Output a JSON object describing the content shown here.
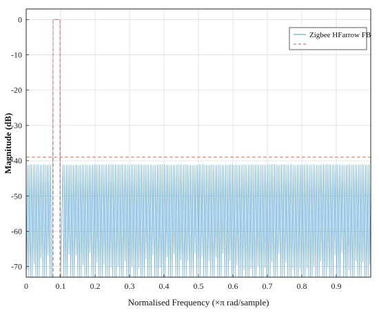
{
  "chart_data": {
    "type": "line",
    "title": "",
    "xlabel": "Normalised Frequency (×π rad/sample)",
    "ylabel": "Magnitude (dB)",
    "xlim": [
      0,
      1
    ],
    "ylim": [
      -73,
      3
    ],
    "xticks": [
      0,
      0.1,
      0.2,
      0.3,
      0.4,
      0.5,
      0.6,
      0.7,
      0.8,
      0.9
    ],
    "xtick_labels": [
      "0",
      "0.1",
      "0.2",
      "0.3",
      "0.4",
      "0.5",
      "0.6",
      "0.7",
      "0.8",
      "0.9"
    ],
    "yticks": [
      0,
      -10,
      -20,
      -30,
      -40,
      -50,
      -60,
      -70
    ],
    "ytick_labels": [
      "0",
      "-10",
      "-20",
      "-30",
      "-40",
      "-50",
      "-60",
      "-70"
    ],
    "grid": true,
    "legend_position": "top-right",
    "series": [
      {
        "name": "Zigbee HFarrow FB",
        "color": "#6aaedc",
        "style": "solid",
        "passband": [
          0.078,
          0.098
        ],
        "passband_level": 0,
        "stopband_peak": -41,
        "stopband_floor": -73,
        "ripple_lobes": 197
      },
      {
        "name": "",
        "color": "#e0785a",
        "style": "dashed",
        "mask_passband": [
          0.078,
          0.098
        ],
        "mask_top": 0,
        "stopband_limit": -39
      }
    ]
  }
}
